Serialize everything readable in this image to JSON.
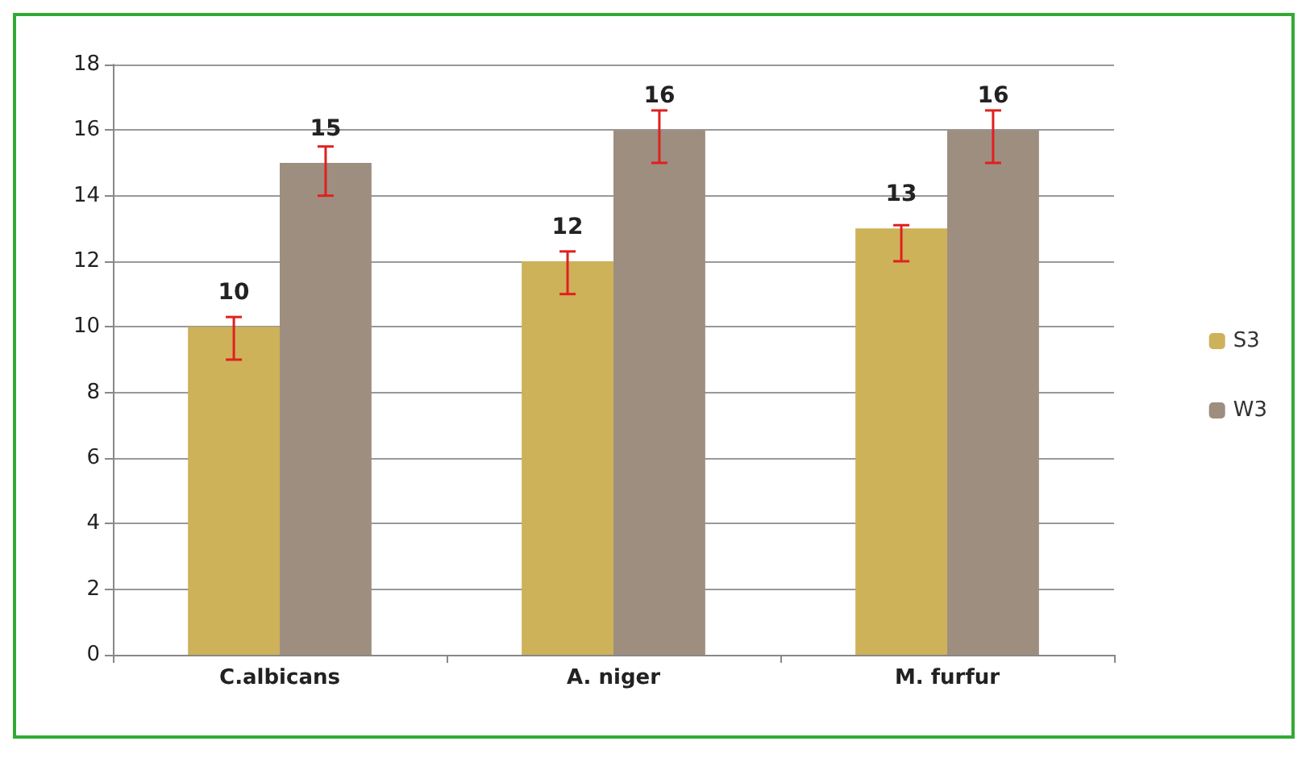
{
  "chart_data": {
    "type": "bar",
    "categories": [
      "C.albicans",
      "A. niger",
      "M. furfur"
    ],
    "series": [
      {
        "name": "S3",
        "color": "#cdb25a",
        "values": [
          10,
          12,
          13
        ],
        "errors": [
          [
            9,
            10.3
          ],
          [
            11,
            12.3
          ],
          [
            12,
            13.1
          ]
        ]
      },
      {
        "name": "W3",
        "color": "#9e8e80",
        "values": [
          15,
          16,
          16
        ],
        "errors": [
          [
            14,
            15.5
          ],
          [
            15,
            16.6
          ],
          [
            15,
            16.6
          ]
        ]
      }
    ],
    "ylim": [
      0,
      18
    ],
    "yticks": [
      0,
      2,
      4,
      6,
      8,
      10,
      12,
      14,
      16,
      18
    ],
    "grid": "y",
    "legend": "right",
    "data_labels": true
  }
}
